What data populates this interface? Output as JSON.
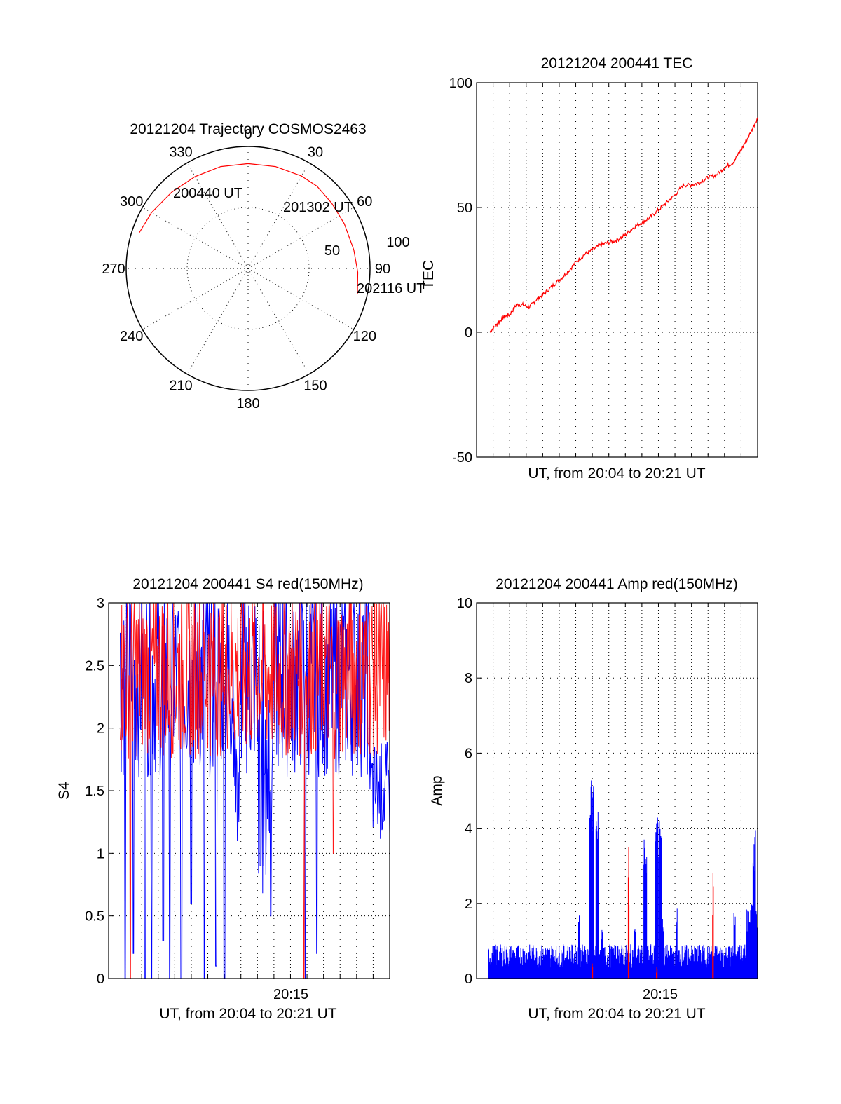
{
  "colors": {
    "red": "#ff0000",
    "blue": "#0000ff",
    "axis": "#000000"
  },
  "chart_data": [
    {
      "id": "polar",
      "type": "polar",
      "title": "20121204 Trajectory COSMOS2463",
      "azimuth_labels": [
        "0",
        "30",
        "60",
        "90",
        "120",
        "150",
        "180",
        "210",
        "240",
        "270",
        "300",
        "330"
      ],
      "radial_labels": [
        "50",
        "100"
      ],
      "rlim": [
        0,
        100
      ],
      "grid": true,
      "track": {
        "color": "red",
        "points_az_r": [
          [
            288,
            94
          ],
          [
            300,
            91.5
          ],
          [
            315,
            88.5
          ],
          [
            330,
            87
          ],
          [
            345,
            86.5
          ],
          [
            0,
            86
          ],
          [
            15,
            86.5
          ],
          [
            30,
            87.5
          ],
          [
            40,
            88
          ],
          [
            52,
            87
          ],
          [
            65,
            87
          ],
          [
            80,
            88
          ],
          [
            92,
            90
          ],
          [
            103,
            92
          ]
        ]
      },
      "annotations": [
        "200440 UT",
        "201302 UT",
        "202116 UT"
      ]
    },
    {
      "id": "tec",
      "type": "line",
      "title": "20121204 200441 TEC",
      "xlabel": "UT, from 20:04 to 20:21 UT",
      "ylabel": "TEC",
      "xlim_minutes": [
        0,
        17
      ],
      "ylim": [
        -50,
        100
      ],
      "yticks": [
        "-50",
        "0",
        "50",
        "100"
      ],
      "grid": true,
      "series": [
        {
          "color": "red",
          "minutes": [
            0.8,
            1.2,
            1.6,
            2.0,
            2.4,
            2.8,
            3.2,
            3.6,
            4.0,
            4.5,
            5.0,
            5.5,
            6.0,
            6.5,
            7.0,
            7.5,
            8.0,
            8.5,
            9.0,
            9.5,
            10.0,
            10.5,
            11.0,
            11.5,
            12.0,
            12.5,
            13.0,
            13.5,
            14.0,
            14.5,
            15.0,
            15.5,
            16.0,
            16.5,
            17.0
          ],
          "values": [
            0,
            3,
            6,
            7,
            11,
            11,
            10,
            13,
            15,
            18,
            21,
            24,
            28,
            31,
            33,
            35,
            36,
            37,
            39,
            42,
            44,
            46,
            49,
            52,
            55,
            59,
            59,
            60,
            62,
            63,
            66,
            68,
            73,
            79,
            86
          ]
        }
      ]
    },
    {
      "id": "s4",
      "type": "line",
      "title": "20121204 200441 S4 red(150MHz)",
      "xlabel": "UT, from 20:04 to 20:21 UT",
      "ylabel": "S4",
      "xtick_labels": [
        "20:15"
      ],
      "xtick_minutes": [
        11
      ],
      "xlim_minutes": [
        0,
        17
      ],
      "ylim": [
        0,
        3
      ],
      "yticks": [
        "0",
        "0.5",
        "1",
        "1.5",
        "2",
        "2.5",
        "3"
      ],
      "grid": true,
      "series": [
        {
          "color": "blue",
          "note_level": "dense fluctuation between 0 and 3, lower excursions near 20:09 and 20:15"
        },
        {
          "color": "red",
          "note_level": "dense fluctuation mostly between 1.6 and 3"
        }
      ],
      "key_points": {
        "blue_dips_minutes": [
          0.3,
          0.6,
          1.0,
          1.5,
          2.2,
          2.6,
          3.3,
          3.7,
          4.4,
          5.0,
          5.8,
          6.5,
          7.0,
          7.8,
          9.2,
          9.8,
          11.9,
          12.6
        ],
        "blue_dip_levels": [
          0,
          0,
          0,
          0.2,
          0,
          0,
          0.3,
          0,
          0,
          0.6,
          0,
          0.1,
          0,
          1.1,
          0.9,
          0.5,
          0,
          0.2
        ],
        "red_dips_minutes": [
          1.3,
          11.8,
          13.6
        ],
        "red_dip_levels": [
          0,
          0,
          1.0
        ]
      }
    },
    {
      "id": "amp",
      "type": "line",
      "title": "20121204 200441 Amp red(150MHz)",
      "xlabel": "UT, from 20:04 to 20:21 UT",
      "ylabel": "Amp",
      "xtick_labels": [
        "20:15"
      ],
      "xtick_minutes": [
        11
      ],
      "xlim_minutes": [
        0,
        17
      ],
      "ylim": [
        0,
        10
      ],
      "yticks": [
        "0",
        "2",
        "4",
        "6",
        "8",
        "10"
      ],
      "grid": true,
      "series": [
        {
          "color": "blue",
          "peaks_minutes": [
            6.2,
            6.9,
            7.0,
            7.3,
            7.6,
            9.6,
            10.2,
            10.9,
            11.1,
            11.3,
            12.1,
            15.6,
            16.8
          ],
          "peak_values": [
            1.9,
            4.7,
            5.3,
            4.5,
            1.3,
            1.5,
            3.7,
            4.7,
            4.4,
            1.7,
            1.9,
            1.9,
            4.0
          ],
          "baseline": 0.7
        },
        {
          "color": "red",
          "peaks_minutes": [
            7.0,
            9.2,
            10.9,
            14.3
          ],
          "peak_values": [
            0.4,
            3.5,
            0.3,
            2.8
          ]
        }
      ]
    }
  ]
}
